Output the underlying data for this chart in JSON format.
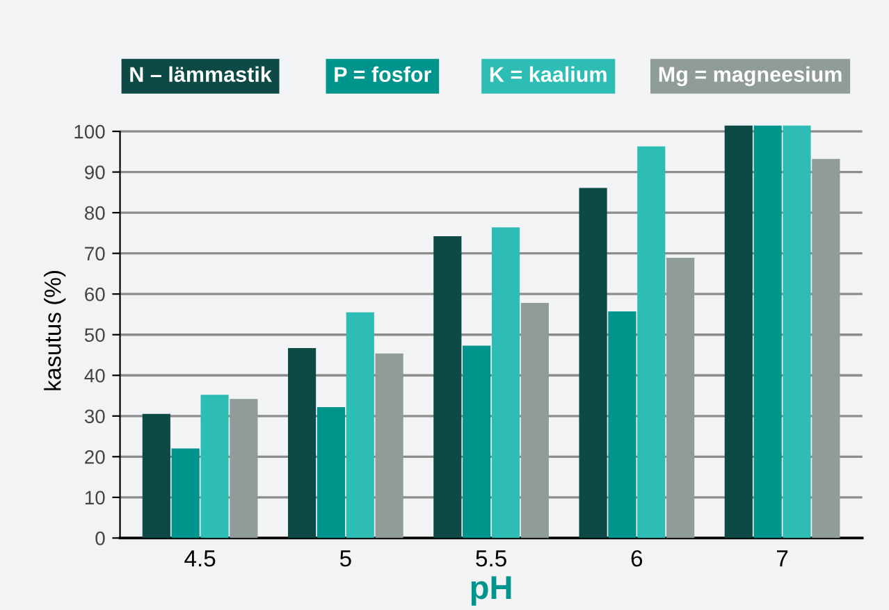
{
  "chart_data": {
    "type": "bar",
    "xlabel": "pH",
    "ylabel": "kasutus (%)",
    "categories": [
      "4.5",
      "5",
      "5.5",
      "6",
      "7"
    ],
    "series": [
      {
        "name": "N – lämmastik",
        "color": "#0d4a45",
        "values": [
          30.5,
          46.7,
          74.2,
          86.1,
          101.4
        ]
      },
      {
        "name": "P = fosfor",
        "color": "#00958c",
        "values": [
          22,
          32.2,
          47.3,
          55.7,
          101.4
        ]
      },
      {
        "name": "K = kaalium",
        "color": "#2ebdb5",
        "values": [
          35.2,
          55.5,
          76.4,
          96.3,
          101.4
        ]
      },
      {
        "name": "Mg = magneesium",
        "color": "#8f9c9a",
        "values": [
          34.2,
          45.4,
          57.8,
          68.9,
          93.2
        ]
      }
    ],
    "ylim": [
      0,
      102
    ],
    "yticks": [
      0,
      10,
      20,
      30,
      40,
      50,
      60,
      70,
      80,
      90,
      100
    ],
    "grid": "y",
    "legend": "top"
  }
}
